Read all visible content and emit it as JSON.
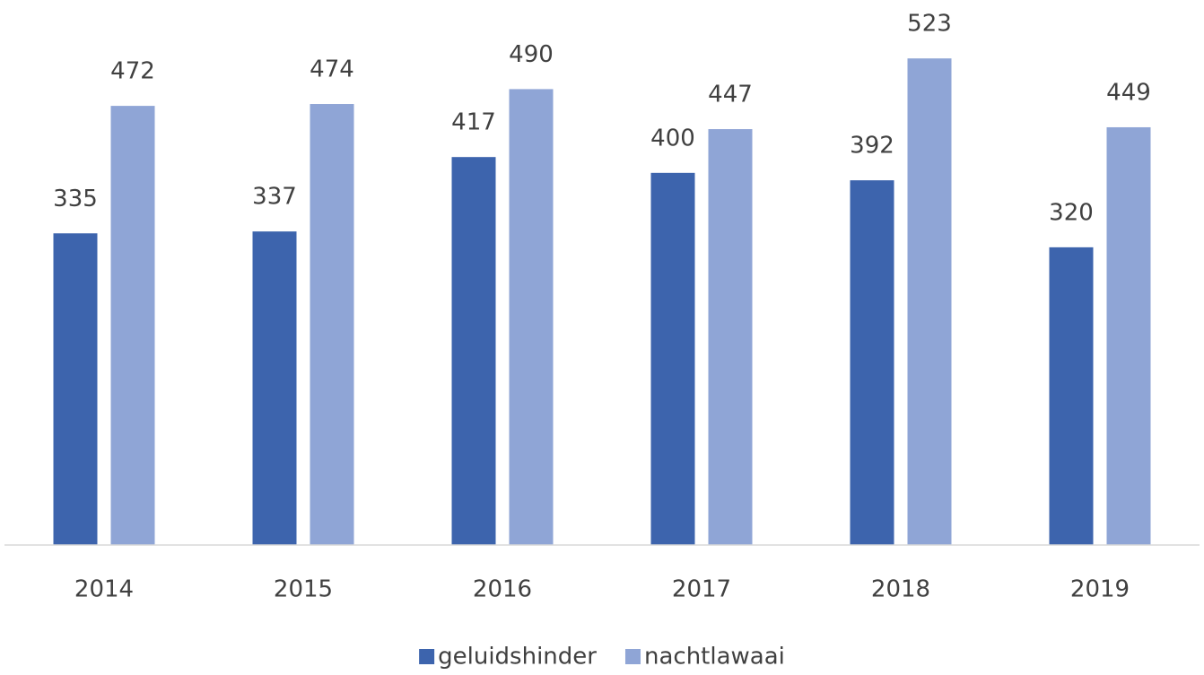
{
  "chart_data": {
    "type": "bar",
    "categories": [
      "2014",
      "2015",
      "2016",
      "2017",
      "2018",
      "2019"
    ],
    "series": [
      {
        "name": "geluidshinder",
        "color": "#3d64ad",
        "values": [
          335,
          337,
          417,
          400,
          392,
          320
        ]
      },
      {
        "name": "nachtlawaai",
        "color": "#8fa5d6",
        "values": [
          472,
          474,
          490,
          447,
          523,
          449
        ]
      }
    ],
    "ylim": [
      0,
      580
    ],
    "legend": "bottom"
  }
}
